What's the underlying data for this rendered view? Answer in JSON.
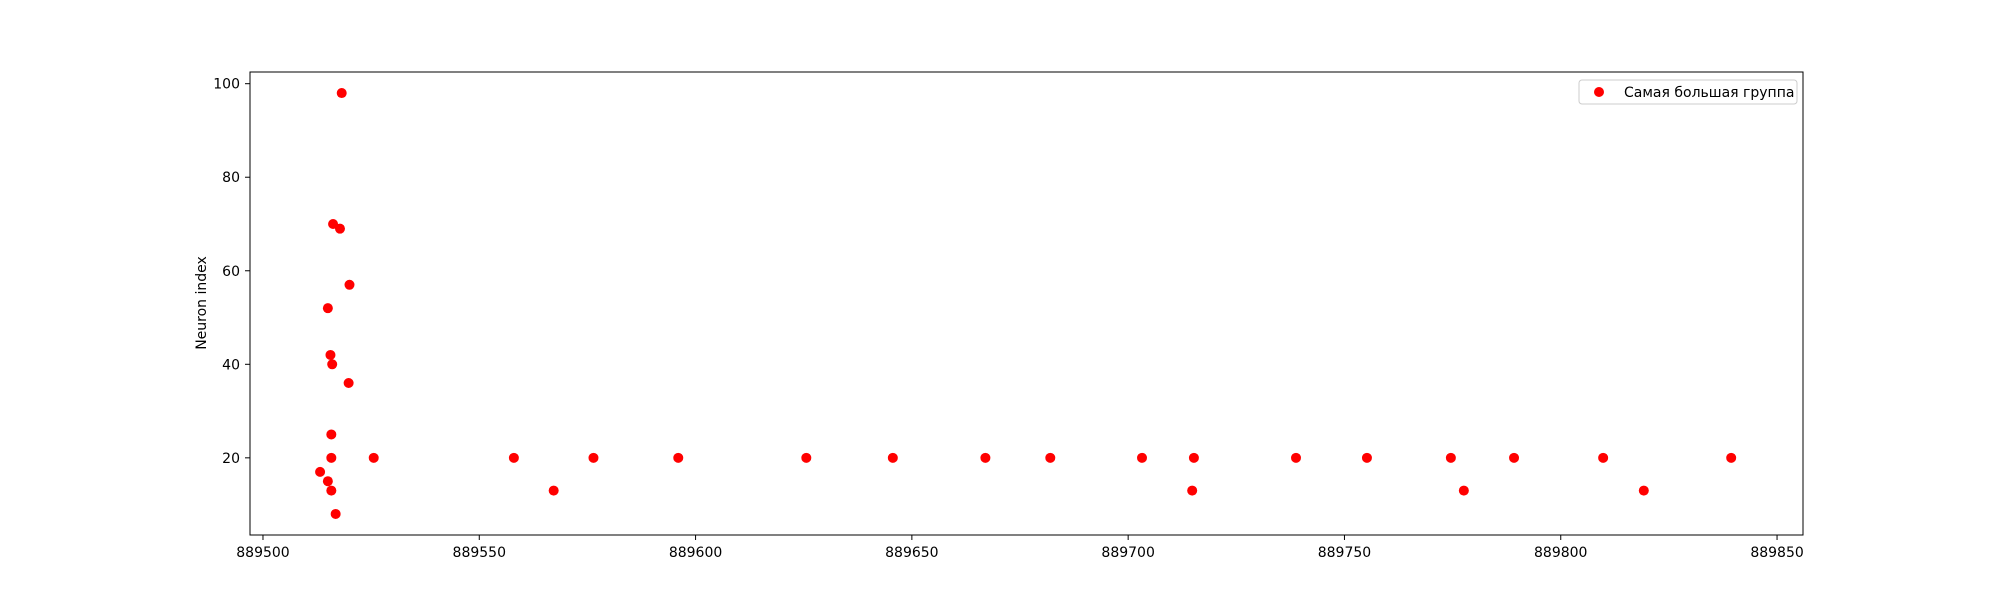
{
  "chart_data": {
    "type": "scatter",
    "title": "",
    "xlabel": "",
    "ylabel": "Neuron index",
    "xlim": [
      889497,
      889856
    ],
    "ylim": [
      3.5,
      102.5
    ],
    "xticks": [
      889500,
      889550,
      889600,
      889650,
      889700,
      889750,
      889800,
      889850
    ],
    "yticks": [
      20,
      40,
      60,
      80,
      100
    ],
    "grid": false,
    "legend": {
      "position": "top-right",
      "entries": [
        "Самая большая группа"
      ]
    },
    "series": [
      {
        "name": "Самая большая группа",
        "color": "#ff0000",
        "marker": "circle",
        "points": [
          [
            889513.2,
            17
          ],
          [
            889515.0,
            52
          ],
          [
            889515.0,
            15
          ],
          [
            889515.6,
            42
          ],
          [
            889515.8,
            25
          ],
          [
            889515.8,
            20
          ],
          [
            889515.8,
            13
          ],
          [
            889516.0,
            40
          ],
          [
            889516.2,
            70
          ],
          [
            889516.8,
            8
          ],
          [
            889517.8,
            69
          ],
          [
            889518.2,
            98
          ],
          [
            889519.8,
            36
          ],
          [
            889520.0,
            57
          ],
          [
            889525.6,
            20
          ],
          [
            889558.0,
            20
          ],
          [
            889567.2,
            13
          ],
          [
            889576.4,
            20
          ],
          [
            889596.0,
            20
          ],
          [
            889625.6,
            20
          ],
          [
            889645.6,
            20
          ],
          [
            889667.0,
            20
          ],
          [
            889682.0,
            20
          ],
          [
            889703.2,
            20
          ],
          [
            889714.8,
            13
          ],
          [
            889715.2,
            20
          ],
          [
            889738.8,
            20
          ],
          [
            889755.2,
            20
          ],
          [
            889774.6,
            20
          ],
          [
            889777.6,
            13
          ],
          [
            889789.2,
            20
          ],
          [
            889809.8,
            20
          ],
          [
            889819.2,
            13
          ],
          [
            889839.4,
            20
          ]
        ]
      }
    ]
  }
}
